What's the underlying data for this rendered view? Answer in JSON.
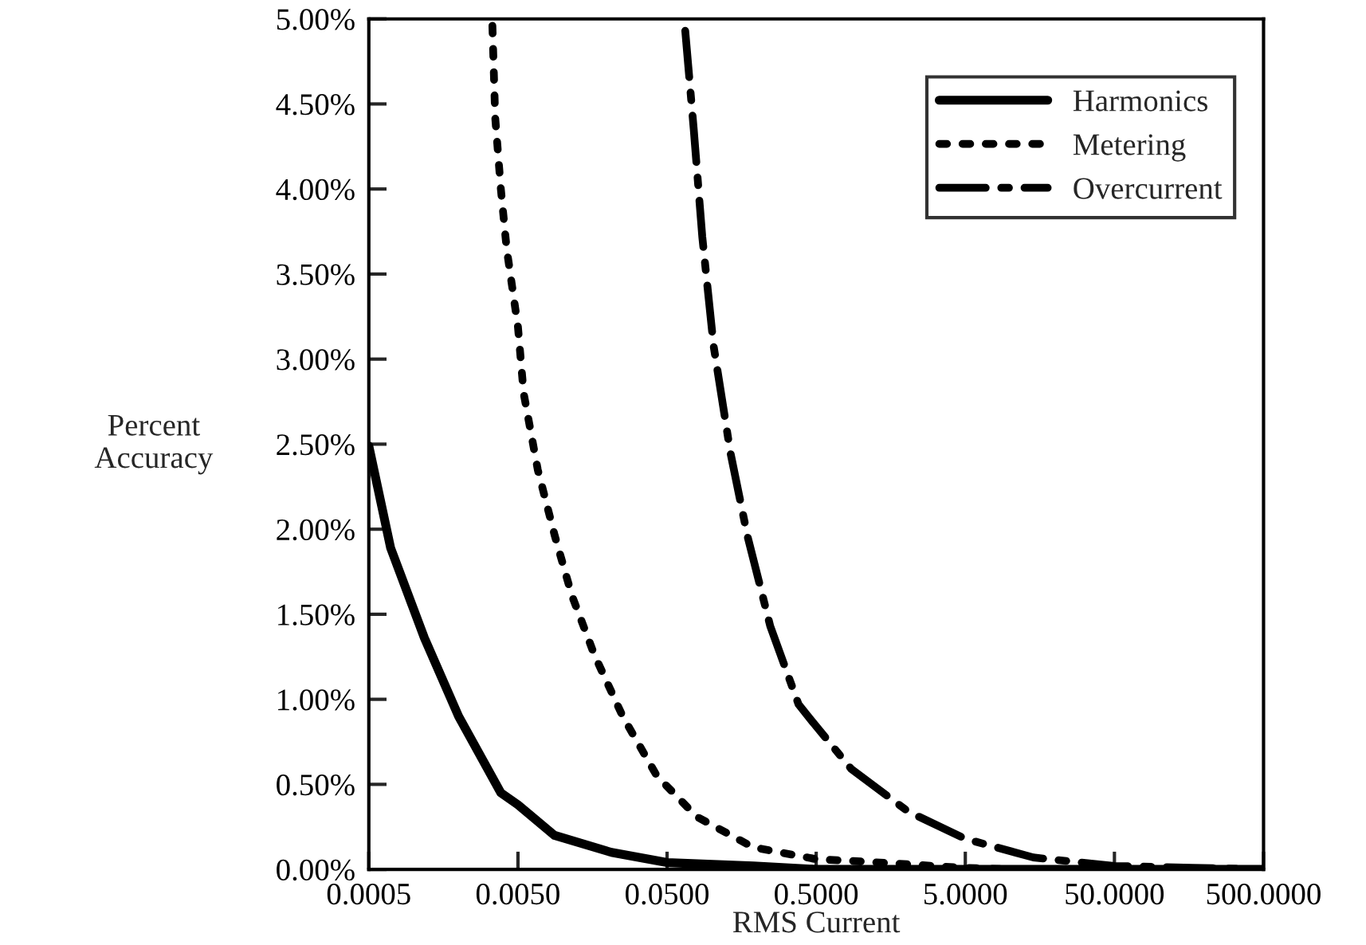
{
  "chart_data": {
    "type": "line",
    "xlabel": "RMS Current",
    "ylabel": "Percent\nAccuracy",
    "log": "x",
    "grid": false,
    "legend": "top right",
    "marker": "none",
    "xlim": [
      0.0005,
      500
    ],
    "xticks": [
      {
        "value": 0.0005,
        "label": "0.0005"
      },
      {
        "value": 0.005,
        "label": "0.0050"
      },
      {
        "value": 0.05,
        "label": "0.0500"
      },
      {
        "value": 0.5,
        "label": "0.5000"
      },
      {
        "value": 5,
        "label": "5.0000"
      },
      {
        "value": 50,
        "label": "50.0000"
      },
      {
        "value": 500,
        "label": "500.0000"
      }
    ],
    "ylim": [
      0,
      5
    ],
    "yticks": [
      {
        "value": 0,
        "label": "0.00%"
      },
      {
        "value": 0.5,
        "label": "0.50%"
      },
      {
        "value": 1,
        "label": "1.00%"
      },
      {
        "value": 1.5,
        "label": "1.50%"
      },
      {
        "value": 2,
        "label": "2.00%"
      },
      {
        "value": 2.5,
        "label": "2.50%"
      },
      {
        "value": 3,
        "label": "3.00%"
      },
      {
        "value": 3.5,
        "label": "3.50%"
      },
      {
        "value": 4,
        "label": "4.00%"
      },
      {
        "value": 4.5,
        "label": "4.50%"
      },
      {
        "value": 5,
        "label": "5.00%"
      }
    ],
    "series": [
      {
        "name": "Harmonics",
        "color": "#000000",
        "line_style": "solid",
        "x": [
          0.0005,
          0.0007,
          0.00118,
          0.002,
          0.00384,
          0.005,
          0.0088,
          0.0212,
          0.05,
          0.19,
          0.5,
          5,
          50,
          500
        ],
        "values": [
          2.49,
          1.89,
          1.36,
          0.9,
          0.45,
          0.38,
          0.2,
          0.1,
          0.04,
          0.02,
          0,
          0,
          0,
          0
        ]
      },
      {
        "name": "Metering",
        "color": "#000000",
        "line_style": "dotted",
        "x": [
          0.00337,
          0.00352,
          0.00384,
          0.0042,
          0.005,
          0.00546,
          0.00679,
          0.00884,
          0.0115,
          0.0163,
          0.0252,
          0.0427,
          0.0789,
          0.189,
          0.5,
          0.86,
          2.07,
          4.6,
          10
        ],
        "values": [
          4.96,
          4.42,
          4.0,
          3.65,
          3.19,
          2.8,
          2.35,
          1.96,
          1.61,
          1.26,
          0.9,
          0.55,
          0.31,
          0.13,
          0.06,
          0.05,
          0.03,
          0.01,
          0
        ]
      },
      {
        "name": "Overcurrent",
        "color": "#000000",
        "line_style": "dashdot",
        "x": [
          0.0662,
          0.0755,
          0.0861,
          0.1025,
          0.133,
          0.173,
          0.246,
          0.381,
          0.47,
          0.86,
          2.07,
          5,
          14.3,
          50,
          167,
          500
        ],
        "values": [
          4.93,
          4.35,
          3.72,
          3.08,
          2.45,
          1.96,
          1.43,
          0.97,
          0.87,
          0.59,
          0.34,
          0.18,
          0.07,
          0.02,
          0.01,
          0
        ]
      }
    ]
  }
}
